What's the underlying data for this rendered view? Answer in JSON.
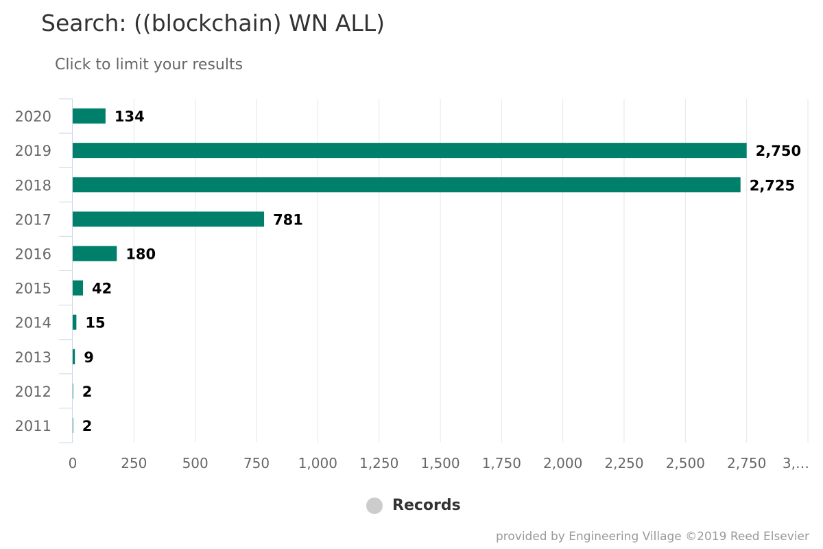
{
  "chart_data": {
    "type": "bar",
    "orientation": "horizontal",
    "title": "Search: ((blockchain) WN ALL)",
    "subtitle": "Click to limit your results",
    "categories": [
      "2020",
      "2019",
      "2018",
      "2017",
      "2016",
      "2015",
      "2014",
      "2013",
      "2012",
      "2011"
    ],
    "series": [
      {
        "name": "Records",
        "values": [
          134,
          2750,
          2725,
          781,
          180,
          42,
          15,
          9,
          2,
          2
        ],
        "data_labels": [
          "134",
          "2,750",
          "2,725",
          "781",
          "180",
          "42",
          "15",
          "9",
          "2",
          "2"
        ]
      }
    ],
    "x_ticks": [
      "0",
      "250",
      "500",
      "750",
      "1,000",
      "1,250",
      "1,500",
      "1,750",
      "2,000",
      "2,250",
      "2,500",
      "2,750",
      "3,…"
    ],
    "x_tick_values": [
      0,
      250,
      500,
      750,
      1000,
      1250,
      1500,
      1750,
      2000,
      2250,
      2500,
      2750,
      3000
    ],
    "xlim": [
      0,
      3000
    ],
    "xlabel": "",
    "ylabel": "",
    "grid": "vertical",
    "legend_position": "bottom-center",
    "bar_color": "#007f6a",
    "legend_color": "#cccccc",
    "credits": "provided by Engineering Village ©2019 Reed Elsevier"
  }
}
